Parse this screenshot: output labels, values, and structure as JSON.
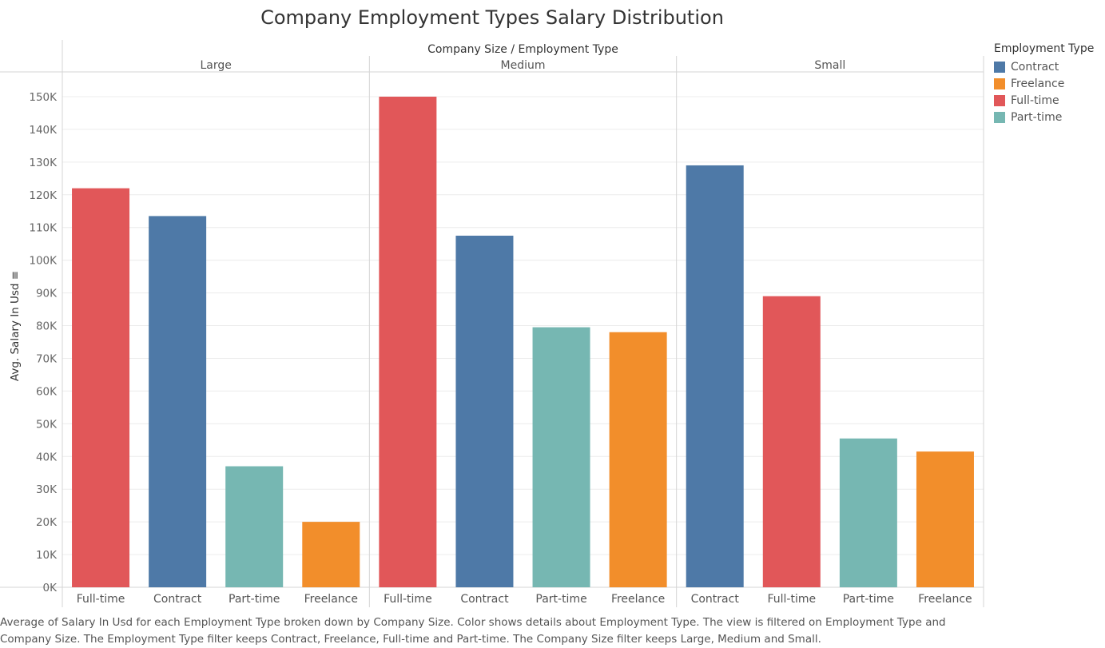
{
  "chart_data": {
    "type": "bar",
    "title": "Company Employment Types Salary Distribution",
    "header": "Company Size  /  Employment Type",
    "ylabel": "Avg. Salary In Usd",
    "ylim": [
      0,
      150000
    ],
    "y_ticks": [
      0,
      10000,
      20000,
      30000,
      40000,
      50000,
      60000,
      70000,
      80000,
      90000,
      100000,
      110000,
      120000,
      130000,
      140000,
      150000
    ],
    "y_tick_labels": [
      "0K",
      "10K",
      "20K",
      "30K",
      "40K",
      "50K",
      "60K",
      "70K",
      "80K",
      "90K",
      "100K",
      "110K",
      "120K",
      "130K",
      "140K",
      "150K"
    ],
    "grid": true,
    "legend_position": "right",
    "groups": [
      {
        "name": "Large",
        "bars": [
          {
            "category": "Full-time",
            "value": 122000
          },
          {
            "category": "Contract",
            "value": 113500
          },
          {
            "category": "Part-time",
            "value": 37000
          },
          {
            "category": "Freelance",
            "value": 20000
          }
        ]
      },
      {
        "name": "Medium",
        "bars": [
          {
            "category": "Full-time",
            "value": 150000
          },
          {
            "category": "Contract",
            "value": 107500
          },
          {
            "category": "Part-time",
            "value": 79500
          },
          {
            "category": "Freelance",
            "value": 78000
          }
        ]
      },
      {
        "name": "Small",
        "bars": [
          {
            "category": "Contract",
            "value": 129000
          },
          {
            "category": "Full-time",
            "value": 89000
          },
          {
            "category": "Part-time",
            "value": 45500
          },
          {
            "category": "Freelance",
            "value": 41500
          }
        ]
      }
    ],
    "colors": {
      "Contract": "#4e79a7",
      "Freelance": "#f28e2b",
      "Full-time": "#e15759",
      "Part-time": "#76b7b2"
    }
  },
  "legend": {
    "title": "Employment Type",
    "items": [
      "Contract",
      "Freelance",
      "Full-time",
      "Part-time"
    ]
  },
  "caption": "Average of Salary In Usd for each Employment Type broken down by Company Size.  Color shows details about Employment Type. The view is filtered on Employment Type and Company Size. The Employment Type filter keeps Contract, Freelance, Full-time and Part-time. The Company Size filter keeps Large, Medium and Small."
}
